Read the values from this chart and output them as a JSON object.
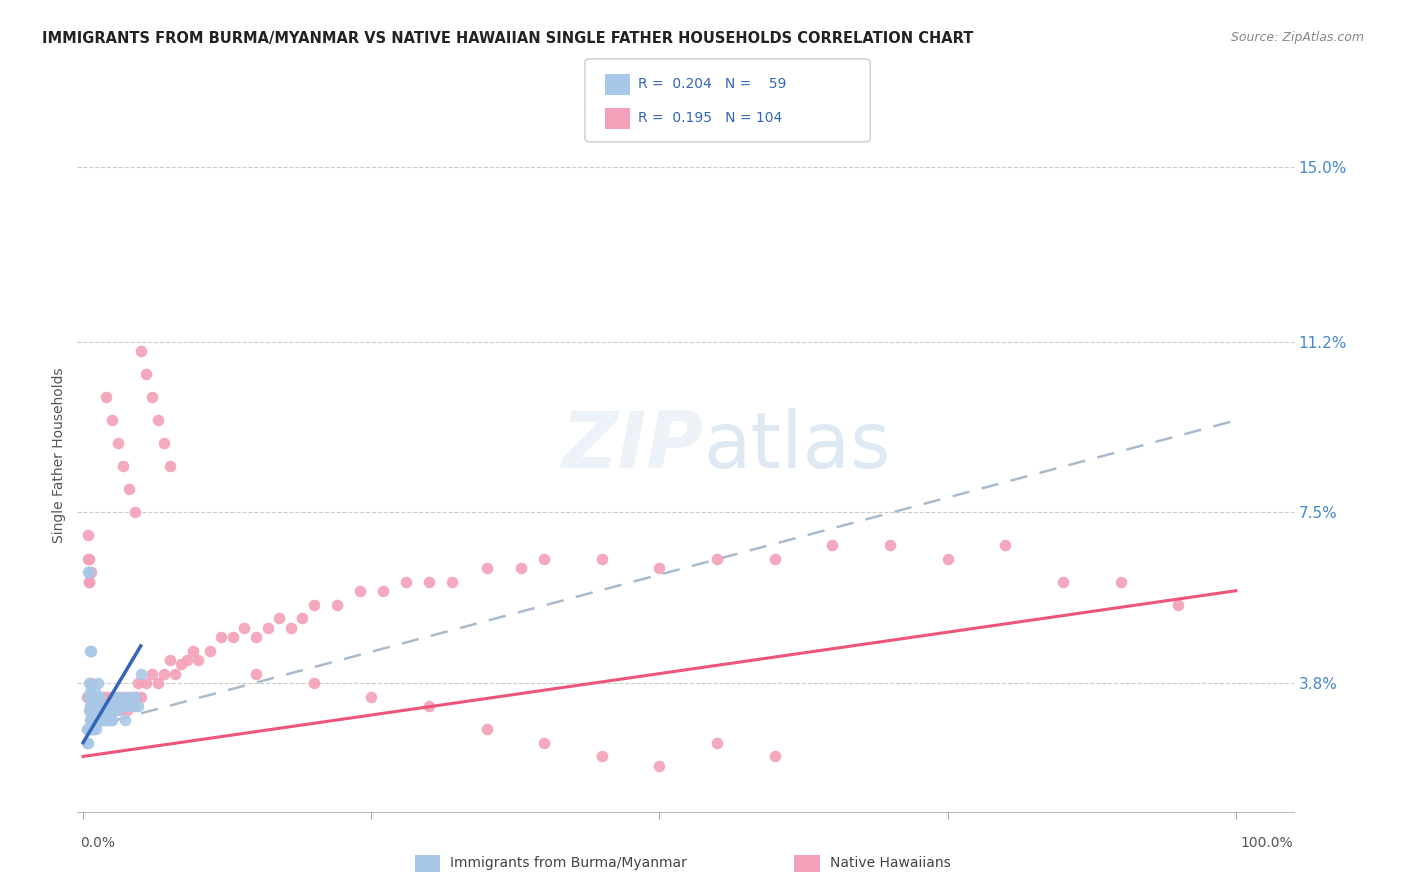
{
  "title": "IMMIGRANTS FROM BURMA/MYANMAR VS NATIVE HAWAIIAN SINGLE FATHER HOUSEHOLDS CORRELATION CHART",
  "source": "Source: ZipAtlas.com",
  "ylabel": "Single Father Households",
  "ytick_labels": [
    "3.8%",
    "7.5%",
    "11.2%",
    "15.0%"
  ],
  "ytick_values": [
    0.038,
    0.075,
    0.112,
    0.15
  ],
  "ymin": 0.01,
  "ymax": 0.165,
  "xmin": -0.005,
  "xmax": 1.05,
  "color_blue": "#a8c8e8",
  "color_pink": "#f4a0b8",
  "color_blue_dark": "#3366bb",
  "color_pink_dark": "#ee5577",
  "color_dashed": "#aabbcc",
  "blue_scatter_x": [
    0.005,
    0.005,
    0.005,
    0.006,
    0.006,
    0.006,
    0.007,
    0.007,
    0.007,
    0.008,
    0.008,
    0.009,
    0.009,
    0.01,
    0.01,
    0.01,
    0.011,
    0.011,
    0.012,
    0.012,
    0.013,
    0.013,
    0.014,
    0.014,
    0.015,
    0.015,
    0.016,
    0.016,
    0.017,
    0.018,
    0.019,
    0.02,
    0.021,
    0.022,
    0.023,
    0.024,
    0.025,
    0.026,
    0.027,
    0.028,
    0.03,
    0.032,
    0.034,
    0.036,
    0.038,
    0.04,
    0.042,
    0.045,
    0.048,
    0.05,
    0.003,
    0.003,
    0.004,
    0.004,
    0.004,
    0.005,
    0.006,
    0.007,
    0.008
  ],
  "blue_scatter_y": [
    0.032,
    0.035,
    0.038,
    0.03,
    0.033,
    0.036,
    0.028,
    0.031,
    0.035,
    0.03,
    0.033,
    0.028,
    0.032,
    0.03,
    0.033,
    0.036,
    0.028,
    0.035,
    0.03,
    0.033,
    0.03,
    0.038,
    0.03,
    0.033,
    0.03,
    0.035,
    0.03,
    0.033,
    0.03,
    0.032,
    0.032,
    0.033,
    0.03,
    0.032,
    0.03,
    0.033,
    0.03,
    0.032,
    0.033,
    0.035,
    0.032,
    0.033,
    0.035,
    0.03,
    0.033,
    0.035,
    0.033,
    0.035,
    0.033,
    0.04,
    0.025,
    0.028,
    0.025,
    0.028,
    0.062,
    0.062,
    0.045,
    0.045,
    0.03
  ],
  "pink_scatter_x": [
    0.005,
    0.005,
    0.006,
    0.007,
    0.007,
    0.008,
    0.008,
    0.009,
    0.01,
    0.01,
    0.011,
    0.012,
    0.013,
    0.014,
    0.015,
    0.016,
    0.017,
    0.018,
    0.019,
    0.02,
    0.022,
    0.024,
    0.026,
    0.028,
    0.03,
    0.032,
    0.034,
    0.036,
    0.038,
    0.04,
    0.042,
    0.044,
    0.046,
    0.048,
    0.05,
    0.055,
    0.06,
    0.065,
    0.07,
    0.075,
    0.08,
    0.085,
    0.09,
    0.095,
    0.1,
    0.11,
    0.12,
    0.13,
    0.14,
    0.15,
    0.16,
    0.17,
    0.18,
    0.19,
    0.2,
    0.22,
    0.24,
    0.26,
    0.28,
    0.3,
    0.32,
    0.35,
    0.38,
    0.4,
    0.45,
    0.5,
    0.55,
    0.6,
    0.65,
    0.7,
    0.75,
    0.8,
    0.85,
    0.9,
    0.95,
    0.003,
    0.004,
    0.004,
    0.005,
    0.006,
    0.006,
    0.007,
    0.02,
    0.025,
    0.03,
    0.035,
    0.04,
    0.045,
    0.05,
    0.055,
    0.06,
    0.065,
    0.07,
    0.075,
    0.15,
    0.2,
    0.25,
    0.3,
    0.35,
    0.4,
    0.45,
    0.5,
    0.55,
    0.6
  ],
  "pink_scatter_y": [
    0.06,
    0.06,
    0.032,
    0.03,
    0.038,
    0.03,
    0.035,
    0.028,
    0.03,
    0.035,
    0.03,
    0.03,
    0.033,
    0.03,
    0.03,
    0.032,
    0.035,
    0.033,
    0.03,
    0.032,
    0.035,
    0.03,
    0.033,
    0.032,
    0.035,
    0.032,
    0.033,
    0.035,
    0.032,
    0.033,
    0.035,
    0.033,
    0.035,
    0.038,
    0.035,
    0.038,
    0.04,
    0.038,
    0.04,
    0.043,
    0.04,
    0.042,
    0.043,
    0.045,
    0.043,
    0.045,
    0.048,
    0.048,
    0.05,
    0.048,
    0.05,
    0.052,
    0.05,
    0.052,
    0.055,
    0.055,
    0.058,
    0.058,
    0.06,
    0.06,
    0.06,
    0.063,
    0.063,
    0.065,
    0.065,
    0.063,
    0.065,
    0.065,
    0.068,
    0.068,
    0.065,
    0.068,
    0.06,
    0.06,
    0.055,
    0.035,
    0.065,
    0.07,
    0.065,
    0.028,
    0.032,
    0.062,
    0.1,
    0.095,
    0.09,
    0.085,
    0.08,
    0.075,
    0.11,
    0.105,
    0.1,
    0.095,
    0.09,
    0.085,
    0.04,
    0.038,
    0.035,
    0.033,
    0.028,
    0.025,
    0.022,
    0.02,
    0.025,
    0.022
  ],
  "blue_line_x": [
    0.0,
    0.05
  ],
  "blue_line_y": [
    0.025,
    0.046
  ],
  "pink_line_x": [
    0.0,
    1.0
  ],
  "pink_line_y": [
    0.022,
    0.058
  ],
  "dashed_line_x": [
    0.0,
    1.0
  ],
  "dashed_line_y": [
    0.028,
    0.095
  ]
}
